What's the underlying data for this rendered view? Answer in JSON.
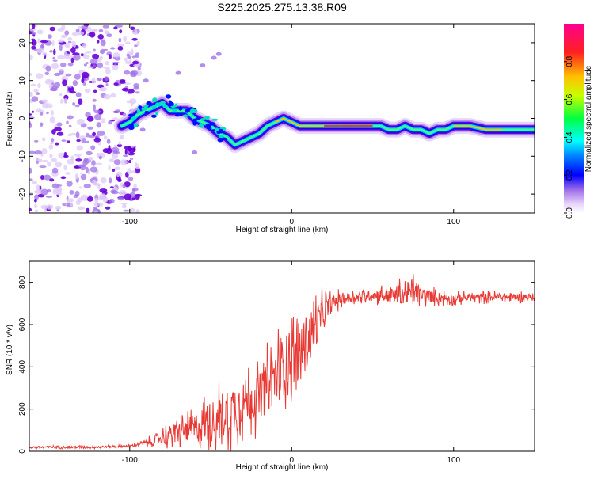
{
  "title": "S225.2025.275.13.38.R09",
  "colors": {
    "snr_line": "#e83a34",
    "scatter_noise": "#a070e8",
    "colormap": [
      "#ffffff",
      "#e6d2fa",
      "#b58cf0",
      "#6a00d8",
      "#0000ff",
      "#00c8ff",
      "#00ff80",
      "#c8ff00",
      "#ffb000",
      "#ff2020",
      "#ff00a0"
    ]
  },
  "chart_data": [
    {
      "type": "heatmap",
      "name": "spectrogram",
      "xlabel": "Height of straight line (km)",
      "ylabel": "Frequency (Hz)",
      "xlim": [
        -162,
        150
      ],
      "ylim": [
        -25,
        25
      ],
      "xticks": [
        {
          "v": -100,
          "label": "-100"
        },
        {
          "v": 0,
          "label": "0"
        },
        {
          "v": 100,
          "label": "100"
        }
      ],
      "yticks": [
        {
          "v": -20,
          "label": "-20"
        },
        {
          "v": -10,
          "label": "-10"
        },
        {
          "v": 0,
          "label": "0"
        },
        {
          "v": 10,
          "label": "10"
        },
        {
          "v": 20,
          "label": "20"
        }
      ],
      "noise_region_x": [
        -162,
        -100
      ],
      "ridge": {
        "x": [
          -105,
          -100,
          -95,
          -90,
          -85,
          -80,
          -75,
          -70,
          -65,
          -60,
          -55,
          -50,
          -45,
          -40,
          -35,
          -30,
          -25,
          -20,
          -15,
          -10,
          -5,
          0,
          5,
          10,
          15,
          20,
          25,
          30,
          40,
          50,
          55,
          60,
          65,
          70,
          75,
          80,
          85,
          90,
          95,
          100,
          110,
          120,
          130,
          140,
          150
        ],
        "y": [
          -2,
          -1,
          1,
          2,
          3,
          4,
          2,
          2,
          2,
          0,
          -1,
          -2,
          -4,
          -5,
          -7,
          -6,
          -5,
          -4,
          -2,
          -1,
          0,
          -1,
          -2,
          -2,
          -2,
          -2,
          -2,
          -2,
          -2,
          -2,
          -2,
          -3,
          -3,
          -2,
          -3,
          -3,
          -4,
          -3,
          -3,
          -2,
          -2,
          -3,
          -3,
          -3,
          -3
        ]
      },
      "colorbar": {
        "label": "Normalized spectral amplitude",
        "range": [
          0,
          1
        ],
        "ticks": [
          {
            "v": 0.0,
            "label": "0.0"
          },
          {
            "v": 0.2,
            "label": "0.2"
          },
          {
            "v": 0.4,
            "label": "0.4"
          },
          {
            "v": 0.6,
            "label": "0.6"
          },
          {
            "v": 0.8,
            "label": "0.8"
          }
        ]
      }
    },
    {
      "type": "line",
      "name": "snr",
      "xlabel": "Height of straight line (km)",
      "ylabel": "SNR (10 * v/v)",
      "xlim": [
        -162,
        150
      ],
      "ylim": [
        0,
        900
      ],
      "xticks": [
        {
          "v": -100,
          "label": "-100"
        },
        {
          "v": 0,
          "label": "0"
        },
        {
          "v": 100,
          "label": "100"
        }
      ],
      "yticks": [
        {
          "v": 0,
          "label": "0"
        },
        {
          "v": 200,
          "label": "200"
        },
        {
          "v": 400,
          "label": "400"
        },
        {
          "v": 600,
          "label": "600"
        },
        {
          "v": 800,
          "label": "800"
        }
      ],
      "series": [
        {
          "name": "SNR",
          "x": [
            -162,
            -140,
            -120,
            -100,
            -90,
            -85,
            -80,
            -75,
            -70,
            -65,
            -60,
            -55,
            -50,
            -45,
            -40,
            -35,
            -30,
            -25,
            -20,
            -15,
            -10,
            -5,
            0,
            5,
            10,
            15,
            20,
            25,
            30,
            40,
            50,
            60,
            70,
            75,
            80,
            90,
            100,
            110,
            120,
            130,
            140,
            150
          ],
          "mean": [
            20,
            20,
            20,
            25,
            40,
            50,
            65,
            80,
            90,
            100,
            110,
            125,
            140,
            160,
            190,
            210,
            230,
            250,
            260,
            300,
            360,
            400,
            450,
            480,
            520,
            600,
            660,
            700,
            720,
            730,
            740,
            740,
            745,
            760,
            740,
            730,
            720,
            730,
            730,
            730,
            730,
            730
          ],
          "spread": [
            8,
            8,
            8,
            8,
            20,
            35,
            50,
            70,
            80,
            90,
            110,
            140,
            160,
            180,
            200,
            200,
            180,
            180,
            180,
            200,
            220,
            230,
            230,
            220,
            220,
            160,
            110,
            60,
            50,
            40,
            40,
            60,
            80,
            100,
            60,
            40,
            35,
            30,
            30,
            30,
            30,
            30
          ]
        }
      ]
    }
  ]
}
